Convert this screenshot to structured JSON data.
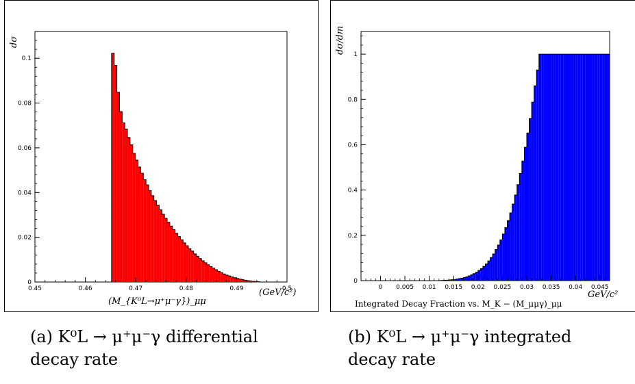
{
  "panels": [
    {
      "caption": "(a) K⁰L → μ⁺μ⁻γ differential decay rate",
      "chart_data": {
        "type": "bar",
        "title": "",
        "xlabel": "(M_{K⁰L→μ⁺μ⁻γ})_μμ",
        "xunit": "(GeV/c²)",
        "ylabel": "dσ",
        "xlim": [
          0.45,
          0.5
        ],
        "ylim": [
          0,
          0.112
        ],
        "x_ticks": [
          0.45,
          0.46,
          0.47,
          0.48,
          0.49,
          0.5
        ],
        "x_tick_labels": [
          "0.45",
          "0.46",
          "0.47",
          "0.48",
          "0.49",
          "0.5"
        ],
        "y_ticks": [
          0,
          0.02,
          0.04,
          0.06,
          0.08,
          0.1
        ],
        "y_tick_labels": [
          "0",
          "0.02",
          "0.04",
          "0.06",
          "0.08",
          "0.1"
        ],
        "bin_start": 0.4652,
        "bin_width": 0.000525,
        "values": [
          0.1023,
          0.0968,
          0.0848,
          0.0762,
          0.0712,
          0.0683,
          0.0646,
          0.0613,
          0.0575,
          0.0545,
          0.0514,
          0.0486,
          0.0458,
          0.0434,
          0.0409,
          0.0386,
          0.0364,
          0.0343,
          0.0323,
          0.0303,
          0.0285,
          0.0267,
          0.025,
          0.0234,
          0.0218,
          0.0203,
          0.0189,
          0.0175,
          0.0162,
          0.0149,
          0.0138,
          0.0126,
          0.0115,
          0.0105,
          0.0095,
          0.0086,
          0.0077,
          0.0069,
          0.0062,
          0.0055,
          0.0048,
          0.0042,
          0.0036,
          0.0031,
          0.0027,
          0.0023,
          0.0019,
          0.0016,
          0.0013,
          0.0011,
          0.0008,
          0.0006,
          0.0005,
          0.0003,
          0.0002,
          0.0001
        ],
        "bar_color": "#ff0000",
        "grid": false
      }
    },
    {
      "caption": "(b) K⁰L → μ⁺μ⁻γ integrated decay rate",
      "chart_data": {
        "type": "bar",
        "title": "",
        "xlabel": "Integrated Decay Fraction vs. M_K − (M_μμγ)_μμ",
        "xunit": "GeV/c²",
        "ylabel": "dσ/dm",
        "xlim": [
          -0.004,
          0.047
        ],
        "ylim": [
          0,
          1.1
        ],
        "x_ticks": [
          0,
          0.005,
          0.01,
          0.015,
          0.02,
          0.025,
          0.03,
          0.035,
          0.04,
          0.045
        ],
        "x_tick_labels": [
          "0",
          "0.005",
          "0.01",
          "0.015",
          "0.02",
          "0.025",
          "0.03",
          "0.035",
          "0.04",
          "0.045"
        ],
        "y_ticks": [
          0,
          0.2,
          0.4,
          0.6,
          0.8,
          1
        ],
        "y_tick_labels": [
          "0",
          "0.2",
          "0.4",
          "0.6",
          "0.8",
          "1"
        ],
        "bin_start": 0.0,
        "bin_width": 0.0005,
        "values": [
          0,
          0,
          0,
          0,
          0,
          0,
          0,
          0,
          0,
          0,
          0,
          0,
          0,
          0,
          0,
          0,
          0,
          0,
          0,
          0,
          0,
          0,
          0,
          0,
          0.0005,
          0.001,
          0.0015,
          0.002,
          0.003,
          0.004,
          0.005,
          0.007,
          0.009,
          0.011,
          0.014,
          0.017,
          0.021,
          0.026,
          0.031,
          0.037,
          0.045,
          0.053,
          0.063,
          0.074,
          0.087,
          0.102,
          0.118,
          0.137,
          0.157,
          0.18,
          0.206,
          0.234,
          0.265,
          0.299,
          0.338,
          0.378,
          0.424,
          0.473,
          0.528,
          0.589,
          0.652,
          0.716,
          0.788,
          0.86,
          0.93,
          1,
          1,
          1,
          1,
          1,
          1,
          1,
          1,
          1,
          1,
          1,
          1,
          1,
          1,
          1,
          1,
          1,
          1,
          1,
          1,
          1,
          1,
          1,
          1,
          1,
          1,
          1,
          1,
          1
        ],
        "bar_color": "#0000ff",
        "grid": false
      }
    }
  ]
}
